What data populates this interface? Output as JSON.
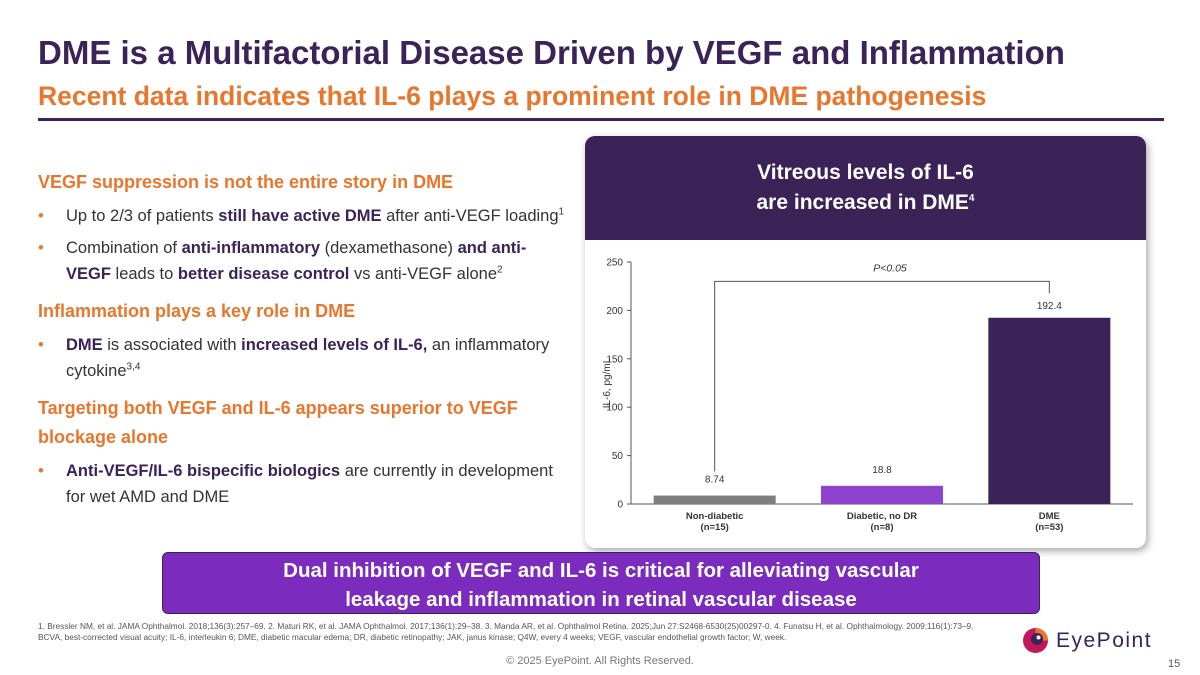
{
  "slide": {
    "title": "DME is a Multifactorial Disease Driven by VEGF and Inflammation",
    "subtitle": "Recent data indicates that IL-6 plays a prominent role in DME pathogenesis",
    "page_number": "15",
    "copyright": "© 2025 EyePoint. All Rights Reserved."
  },
  "left": {
    "s1_head": "VEGF suppression is not the entire story in DME",
    "b1": {
      "p1": "Up to 2/3 of patients ",
      "p2": "still have active DME",
      "p3": " after anti-VEGF loading",
      "sup": "1"
    },
    "b2": {
      "p1": "Combination of ",
      "p2": "anti-inflammatory",
      "p3": " (dexamethasone) ",
      "p4": "and anti-VEGF",
      "p5": " leads to ",
      "p6": "better disease control",
      "p7": " vs anti-VEGF alone",
      "sup": "2"
    },
    "s2_head": "Inflammation plays a key role in DME",
    "b3": {
      "p1": "DME",
      "p2": " is associated with ",
      "p3": "increased levels of IL-6,",
      "p4": " an inflammatory cytokine",
      "sup": "3,4"
    },
    "s3_head": "Targeting both VEGF and IL-6 appears superior to VEGF blockage alone",
    "b4": {
      "p1": "Anti-VEGF/IL-6 bispecific biologics",
      "p2": " are currently in development for wet AMD and DME"
    },
    "bullet_char": "•"
  },
  "panel": {
    "heading_line1": "Vitreous levels of IL-6",
    "heading_line2": "are increased in DME",
    "heading_sup": "4"
  },
  "chart_data": {
    "type": "bar",
    "categories": [
      [
        "Non-diabetic",
        "(n=15)"
      ],
      [
        "Diabetic, no DR",
        "(n=8)"
      ],
      [
        "DME",
        "(n=53)"
      ]
    ],
    "values": [
      8.74,
      18.8,
      192.4
    ],
    "value_labels": [
      "8.74",
      "18.8",
      "192.4"
    ],
    "colors": [
      "#7f7f7f",
      "#8e44cf",
      "#3b2257"
    ],
    "ylabel": "IL-6, pg/mL",
    "ylim": [
      0,
      250
    ],
    "yticks": [
      0,
      50,
      100,
      150,
      200,
      250
    ],
    "significance": {
      "label": "P<0.05",
      "from": 0,
      "to": 2
    },
    "grid": false
  },
  "callout": {
    "line1": "Dual inhibition of VEGF and IL-6 is critical for alleviating vascular",
    "line2": "leakage and inflammation in retinal vascular disease"
  },
  "footnotes": {
    "refs": "1. Bressler NM, et al. JAMA Ophthalmol. 2018;136(3):257–69. 2. Maturi RK, et al. JAMA Ophthalmol. 2017;136(1):29–38. 3. Manda AR, et al. Ophthalmol Retina. 2025;Jun 27:S2468-6530(25)00297-0. 4. Funatsu H, et al. Ophthalmology. 2009;116(1):73–9.",
    "abbrev": "BCVA, best-corrected visual acuity; IL-6, interleukin 6; DME, diabetic macular edema; DR, diabetic retinopathy; JAK, janus kinase; Q4W, every 4 weeks; VEGF, vascular endothelial growth factor; W, week."
  },
  "logo": {
    "text": "EyePoint",
    "icon": "eyepoint-logo-icon",
    "colors": [
      "#e8762d",
      "#c2185b",
      "#3b2257"
    ]
  }
}
